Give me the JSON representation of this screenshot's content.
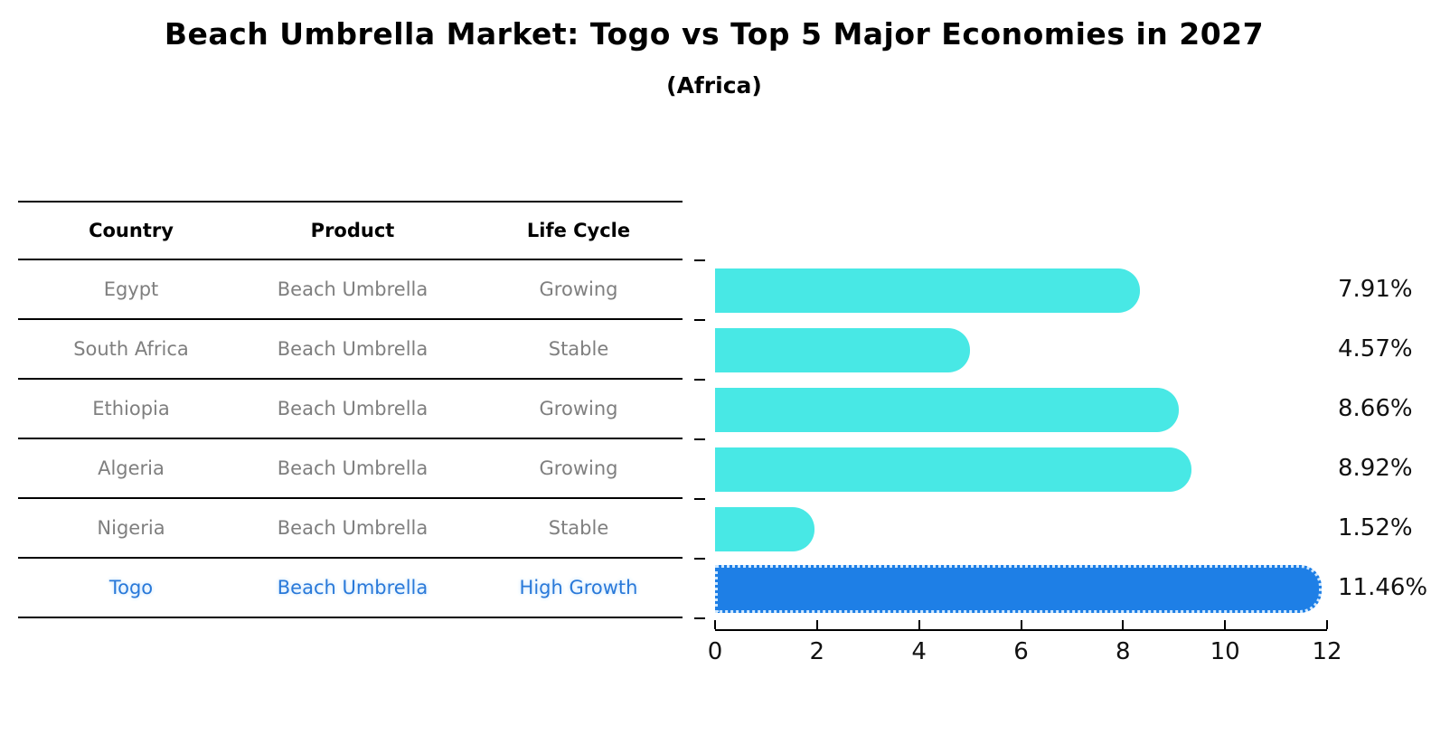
{
  "title": "Beach Umbrella Market: Togo vs Top 5 Major Economies in 2027",
  "subtitle": "(Africa)",
  "colors": {
    "bar_default": "#48e8e5",
    "bar_highlight": "#1e7fe6",
    "bar_highlight_border": "#cfe8ff",
    "highlight_text": "#2979d9",
    "cell_text": "#7f7f7f",
    "axis": "#000000"
  },
  "table": {
    "headers": [
      "Country",
      "Product",
      "Life Cycle"
    ],
    "rows": [
      {
        "country": "Egypt",
        "product": "Beach Umbrella",
        "life_cycle": "Growing",
        "highlight": false
      },
      {
        "country": "South Africa",
        "product": "Beach Umbrella",
        "life_cycle": "Stable",
        "highlight": false
      },
      {
        "country": "Ethiopia",
        "product": "Beach Umbrella",
        "life_cycle": "Growing",
        "highlight": false
      },
      {
        "country": "Algeria",
        "product": "Beach Umbrella",
        "life_cycle": "Growing",
        "highlight": false
      },
      {
        "country": "Nigeria",
        "product": "Beach Umbrella",
        "life_cycle": "Stable",
        "highlight": false
      },
      {
        "country": "Togo",
        "product": "Beach Umbrella",
        "life_cycle": "High Growth",
        "highlight": true
      }
    ]
  },
  "chart_data": {
    "type": "bar",
    "orientation": "horizontal",
    "title": "Beach Umbrella Market: Togo vs Top 5 Major Economies in 2027 (Africa)",
    "categories": [
      "Egypt",
      "South Africa",
      "Ethiopia",
      "Algeria",
      "Nigeria",
      "Togo"
    ],
    "values": [
      7.91,
      4.57,
      8.66,
      8.92,
      1.52,
      11.46
    ],
    "value_labels": [
      "7.91%",
      "4.57%",
      "8.66%",
      "8.92%",
      "1.52%",
      "11.46%"
    ],
    "highlight_index": 5,
    "xlabel": "",
    "ylabel": "",
    "xlim": [
      0,
      12
    ],
    "x_ticks": [
      0,
      2,
      4,
      6,
      8,
      10,
      12
    ],
    "grid": false,
    "legend": "none"
  }
}
